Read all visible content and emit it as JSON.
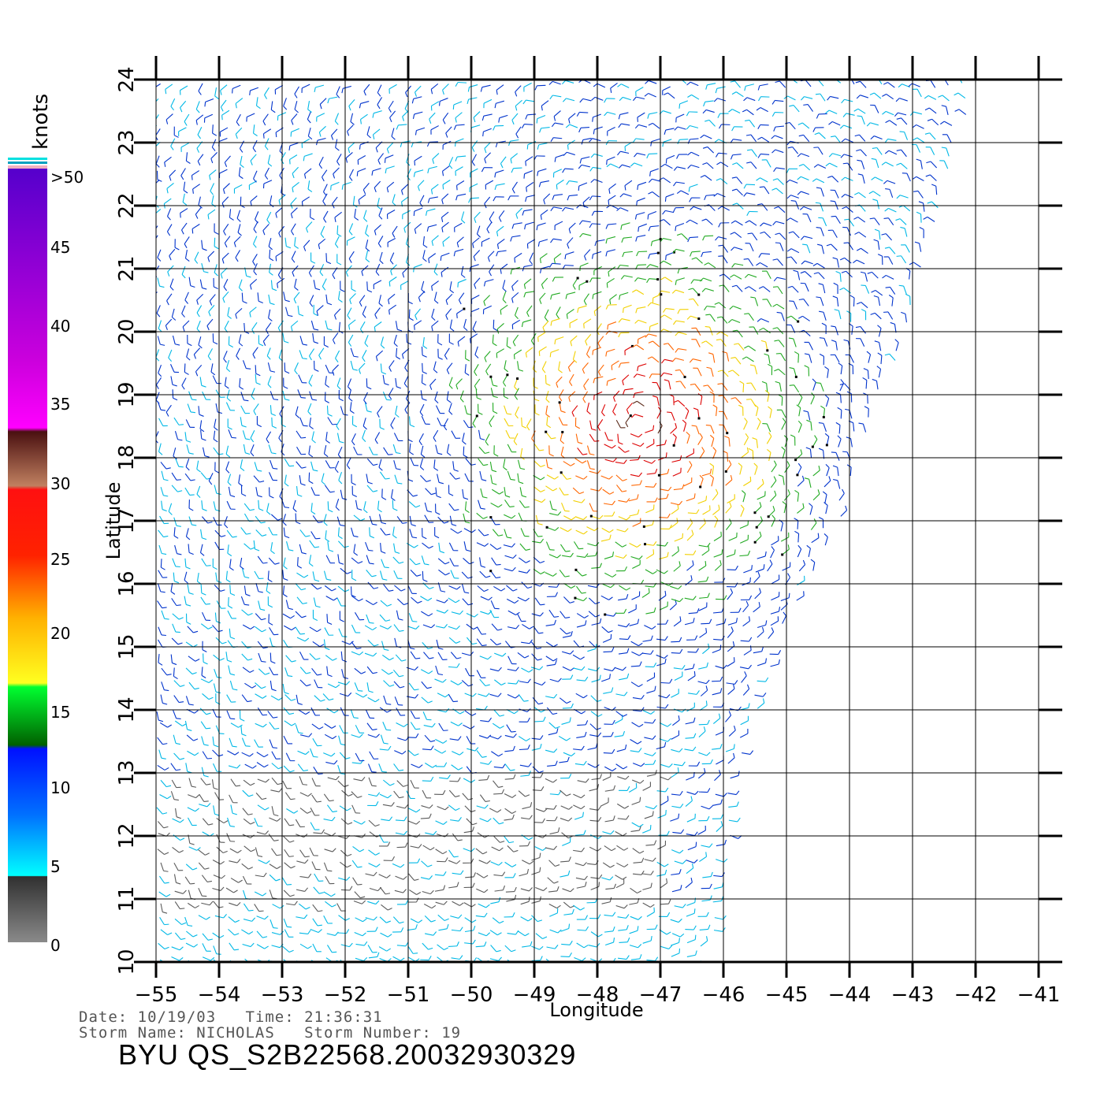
{
  "map": {
    "xlabel": "Longitude",
    "ylabel": "Latitude",
    "xlim": [
      -55,
      -41
    ],
    "ylim": [
      10,
      24
    ],
    "lon_ticks": [
      "-55",
      "-54",
      "-53",
      "-52",
      "-51",
      "-50",
      "-49",
      "-48",
      "-47",
      "-46",
      "-45",
      "-44",
      "-43",
      "-42",
      "-41"
    ],
    "lat_ticks": [
      "10",
      "11",
      "12",
      "13",
      "14",
      "15",
      "16",
      "17",
      "18",
      "19",
      "20",
      "21",
      "22",
      "23",
      "24"
    ],
    "grid": true,
    "swath_east_edge": [
      [
        -42,
        24
      ],
      [
        -43.1,
        20
      ],
      [
        -44.2,
        17
      ],
      [
        -45.1,
        15
      ],
      [
        -45.8,
        13
      ],
      [
        -46.2,
        10
      ]
    ]
  },
  "colorbar": {
    "unit": "knots",
    "labels": [
      ">50",
      "45",
      "40",
      "35",
      "30",
      "25",
      "20",
      "15",
      "10",
      "5",
      "0"
    ],
    "colors": {
      "speed_0_5": "#5a5a5a",
      "speed_5_10": "#00b8e6",
      "speed_10_15": "#0033cc",
      "speed_15_20": "#22aa22",
      "speed_20_25": "#f2d000",
      "speed_25_30": "#ff6600",
      "speed_30_35": "#dd0000",
      "speed_35_40": "#5a2a1a",
      "speed_40_45": "#ff00ff",
      "speed_45_50": "#8800cc"
    }
  },
  "storm": {
    "center_lon": -47.3,
    "center_lat": 18.6
  },
  "footer": {
    "date_line": "Date: 10/19/03   Time: 21:36:31",
    "storm_line": "Storm Name: NICHOLAS   Storm Number: 19",
    "product": "BYU QS_S2B22568.20032930329"
  }
}
